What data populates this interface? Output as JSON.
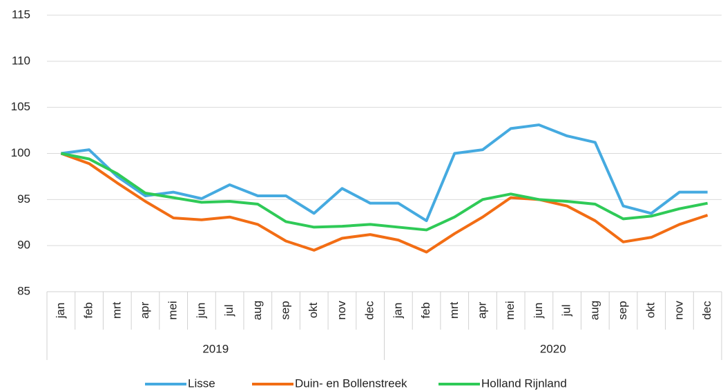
{
  "chart_data": {
    "type": "line",
    "categories": [
      "jan",
      "feb",
      "mrt",
      "apr",
      "mei",
      "jun",
      "jul",
      "aug",
      "sep",
      "okt",
      "nov",
      "dec",
      "jan",
      "feb",
      "mrt",
      "apr",
      "mei",
      "jun",
      "jul",
      "aug",
      "sep",
      "okt",
      "nov",
      "dec"
    ],
    "groups": [
      "2019",
      "2020"
    ],
    "series": [
      {
        "name": "Lisse",
        "color": "#45aae0",
        "values": [
          100,
          100.4,
          97.5,
          95.4,
          95.8,
          95.1,
          96.6,
          95.4,
          95.4,
          93.5,
          96.2,
          94.6,
          94.6,
          92.7,
          100,
          100.4,
          102.7,
          103.1,
          101.9,
          101.2,
          94.3,
          93.5,
          95.8,
          95.8
        ]
      },
      {
        "name": "Duin- en Bollenstreek",
        "color": "#f26d14",
        "values": [
          100,
          98.9,
          96.8,
          94.8,
          93.0,
          92.8,
          93.1,
          92.3,
          90.5,
          89.5,
          90.8,
          91.2,
          90.6,
          89.3,
          91.3,
          93.1,
          95.2,
          95.0,
          94.3,
          92.7,
          90.4,
          90.9,
          92.3,
          93.3
        ]
      },
      {
        "name": "Holland Rijnland",
        "color": "#2fca57",
        "values": [
          100,
          99.4,
          97.8,
          95.7,
          95.2,
          94.7,
          94.8,
          94.5,
          92.6,
          92.0,
          92.1,
          92.3,
          92.0,
          91.7,
          93.1,
          95.0,
          95.6,
          95.0,
          94.8,
          94.5,
          92.9,
          93.2,
          94.0,
          94.6
        ]
      }
    ],
    "ylim": [
      85,
      115
    ],
    "yticks": [
      85,
      90,
      95,
      100,
      105,
      110,
      115
    ],
    "grid": true,
    "legend": "bottom"
  }
}
